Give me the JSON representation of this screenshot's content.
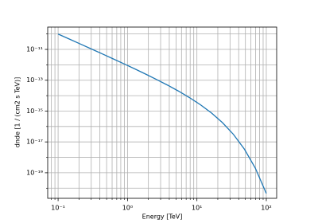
{
  "chart_data": {
    "type": "line",
    "x_label": "Energy [TeV]",
    "y_label": "dnde [1 / (cm2 s TeV)]",
    "log_x": true,
    "log_y": true,
    "grid": true,
    "x": [
      0.1,
      0.1438,
      0.2069,
      0.2976,
      0.4281,
      0.6158,
      0.8859,
      1.274,
      1.833,
      2.637,
      3.793,
      5.456,
      7.848,
      11.29,
      16.24,
      23.36,
      33.6,
      48.33,
      69.52,
      100
    ],
    "series": [
      {
        "color": "#1f77b4",
        "values": [
          9.9e-11,
          4.764e-11,
          2.288e-11,
          1.0957e-11,
          5.227e-12,
          2.48e-12,
          1.1662e-12,
          5.424e-13,
          2.478e-13,
          1.1047e-13,
          4.756e-14,
          1.9465e-14,
          7.407e-15,
          2.537e-15,
          7.475e-16,
          1.7724e-16,
          3.077e-17,
          3.408e-18,
          1.978e-19,
          4.54e-21
        ]
      }
    ],
    "xlim": [
      0.0708,
      141
    ],
    "ylim": [
      2.2e-21,
      2.8e-10
    ],
    "xticks": [
      {
        "value": 0.1,
        "label": "10⁻¹"
      },
      {
        "value": 1,
        "label": "10⁰"
      },
      {
        "value": 10,
        "label": "10¹"
      },
      {
        "value": 100,
        "label": "10²"
      }
    ],
    "xminorticks": [
      0.08,
      0.09,
      0.2,
      0.3,
      0.4,
      0.5,
      0.6,
      0.7,
      0.8,
      0.9,
      2,
      3,
      4,
      5,
      6,
      7,
      8,
      9,
      20,
      30,
      40,
      50,
      60,
      70,
      80,
      90
    ],
    "yticks": [
      {
        "value": 1e-19,
        "label": "10⁻¹⁹"
      },
      {
        "value": 1e-17,
        "label": "10⁻¹⁷"
      },
      {
        "value": 1e-15,
        "label": "10⁻¹⁵"
      },
      {
        "value": 1e-13,
        "label": "10⁻¹³"
      },
      {
        "value": 1e-11,
        "label": "10⁻¹¹"
      }
    ],
    "yminorticks": [
      1e-20,
      1e-18,
      1e-16,
      1e-14,
      1e-12,
      1e-10
    ]
  }
}
